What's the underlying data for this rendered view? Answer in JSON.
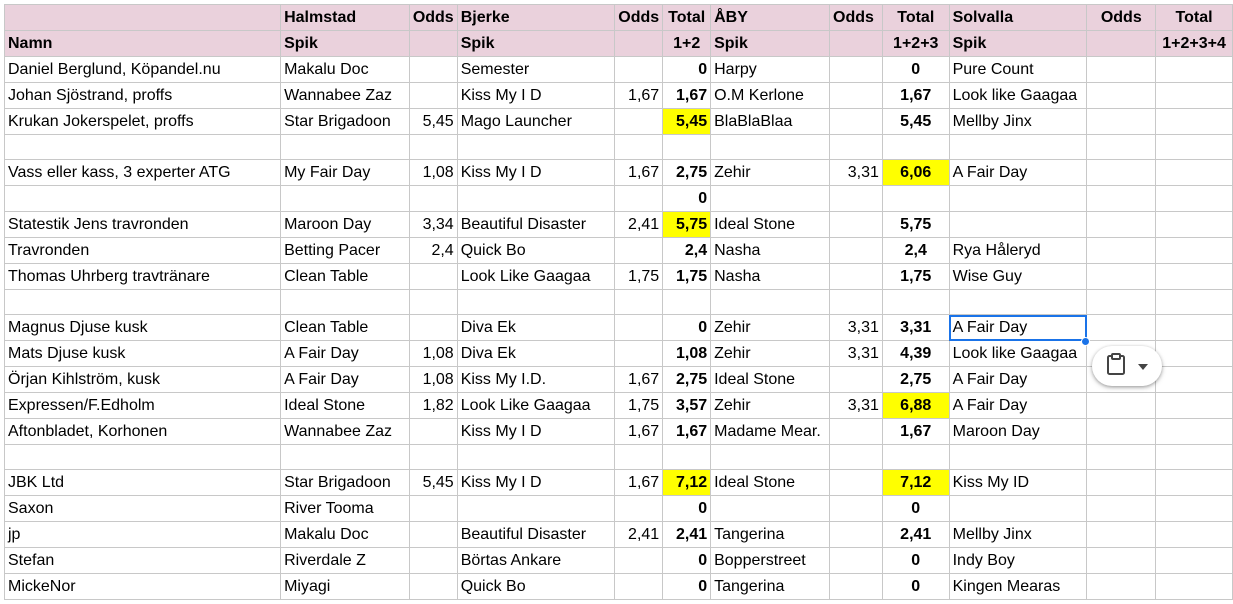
{
  "header1": [
    "",
    "Halmstad",
    "Odds",
    "Bjerke",
    "Odds",
    "Total",
    "ÅBY",
    "Odds",
    "Total",
    "Solvalla",
    "Odds",
    "Total"
  ],
  "header2": [
    "Namn",
    "Spik",
    "",
    "Spik",
    "",
    "1+2",
    "Spik",
    "",
    "1+2+3",
    "Spik",
    "",
    "1+2+3+4"
  ],
  "rows": [
    [
      "Daniel Berglund, Köpandel.nu",
      "Makalu Doc",
      "",
      "Semester",
      "",
      "0",
      "Harpy",
      "",
      "0",
      "Pure Count",
      "",
      ""
    ],
    [
      "Johan Sjöstrand, proffs",
      "Wannabee Zaz",
      "",
      "Kiss My I D",
      "1,67",
      "1,67",
      "O.M Kerlone",
      "",
      "1,67",
      "Look like Gaagaa",
      "",
      ""
    ],
    [
      "Krukan Jokerspelet, proffs",
      "Star Brigadoon",
      "5,45",
      "Mago Launcher",
      "",
      "5,45",
      "BlaBlaBlaa",
      "",
      "5,45",
      "Mellby Jinx",
      "",
      ""
    ],
    [
      "",
      "",
      "",
      "",
      "",
      "",
      "",
      "",
      "",
      "",
      "",
      ""
    ],
    [
      "Vass eller kass, 3 experter ATG",
      "My Fair Day",
      "1,08",
      "Kiss My I D",
      "1,67",
      "2,75",
      "Zehir",
      "3,31",
      "6,06",
      "A Fair Day",
      "",
      ""
    ],
    [
      "",
      "",
      "",
      "",
      "",
      "0",
      "",
      "",
      "",
      "",
      "",
      ""
    ],
    [
      "Statestik Jens travronden",
      "Maroon Day",
      "3,34",
      "Beautiful Disaster",
      "2,41",
      "5,75",
      " Ideal Stone",
      "",
      "5,75",
      "",
      "",
      ""
    ],
    [
      "Travronden",
      "Betting Pacer",
      "2,4",
      "Quick Bo",
      "",
      "2,4",
      "Nasha",
      "",
      "2,4",
      "Rya Håleryd",
      "",
      ""
    ],
    [
      "Thomas Uhrberg travtränare",
      "Clean Table",
      "",
      "Look Like Gaagaa",
      "1,75",
      "1,75",
      "Nasha",
      "",
      "1,75",
      "Wise Guy",
      "",
      ""
    ],
    [
      "",
      "",
      "",
      "",
      "",
      "",
      "",
      "",
      "",
      "",
      "",
      ""
    ],
    [
      "Magnus Djuse kusk",
      "Clean Table",
      "",
      "Diva Ek",
      "",
      "0",
      "Zehir",
      "3,31",
      "3,31",
      "A Fair Day",
      "",
      ""
    ],
    [
      "Mats Djuse kusk",
      " A Fair Day",
      "1,08",
      "Diva Ek",
      "",
      "1,08",
      "Zehir",
      "3,31",
      "4,39",
      "Look like Gaagaa",
      "",
      ""
    ],
    [
      "Örjan Kihlström, kusk",
      " A Fair Day",
      "1,08",
      "Kiss My I.D.",
      "1,67",
      "2,75",
      " Ideal Stone",
      "",
      "2,75",
      " A Fair Day",
      "",
      ""
    ],
    [
      "Expressen/F.Edholm",
      "Ideal Stone",
      "1,82",
      "Look Like Gaagaa",
      "1,75",
      "3,57",
      "Zehir",
      "3,31",
      "6,88",
      "A Fair Day",
      "",
      ""
    ],
    [
      "Aftonbladet, Korhonen",
      "Wannabee Zaz",
      "",
      "Kiss My I D",
      "1,67",
      "1,67",
      "Madame Mear.",
      "",
      "1,67",
      "Maroon Day",
      "",
      ""
    ],
    [
      "",
      "",
      "",
      "",
      "",
      "",
      "",
      "",
      "",
      "",
      "",
      ""
    ],
    [
      "JBK Ltd",
      "Star Brigadoon",
      "5,45",
      "Kiss My I D",
      "1,67",
      "7,12",
      "Ideal Stone",
      "",
      "7,12",
      "Kiss My ID",
      "",
      ""
    ],
    [
      "Saxon",
      "River Tooma",
      "",
      "",
      "",
      "0",
      "",
      "",
      "0",
      "",
      "",
      ""
    ],
    [
      "jp",
      "Makalu Doc",
      "",
      "Beautiful Disaster",
      "2,41",
      "2,41",
      "Tangerina",
      "",
      "2,41",
      "Mellby Jinx",
      "",
      ""
    ],
    [
      "Stefan",
      "Riverdale Z",
      "",
      "Börtas Ankare",
      "",
      "0",
      "Bopperstreet",
      "",
      "0",
      "Indy Boy",
      "",
      ""
    ],
    [
      "MickeNor",
      "Miyagi",
      "",
      "Quick Bo",
      "",
      "0",
      "Tangerina",
      "",
      "0",
      "Kingen Mearas",
      "",
      ""
    ]
  ],
  "highlight_color": "#ffff00",
  "header_color": "#ead1dc",
  "highlights": [
    {
      "row": 2,
      "col": 5
    },
    {
      "row": 4,
      "col": 8
    },
    {
      "row": 6,
      "col": 5
    },
    {
      "row": 13,
      "col": 8
    },
    {
      "row": 16,
      "col": 5
    },
    {
      "row": 16,
      "col": 8
    }
  ],
  "selected_cell": {
    "row": 10,
    "col": 9
  },
  "paste_menu": {
    "icon": "clipboard-icon",
    "chevron": "chevron-down-icon"
  }
}
